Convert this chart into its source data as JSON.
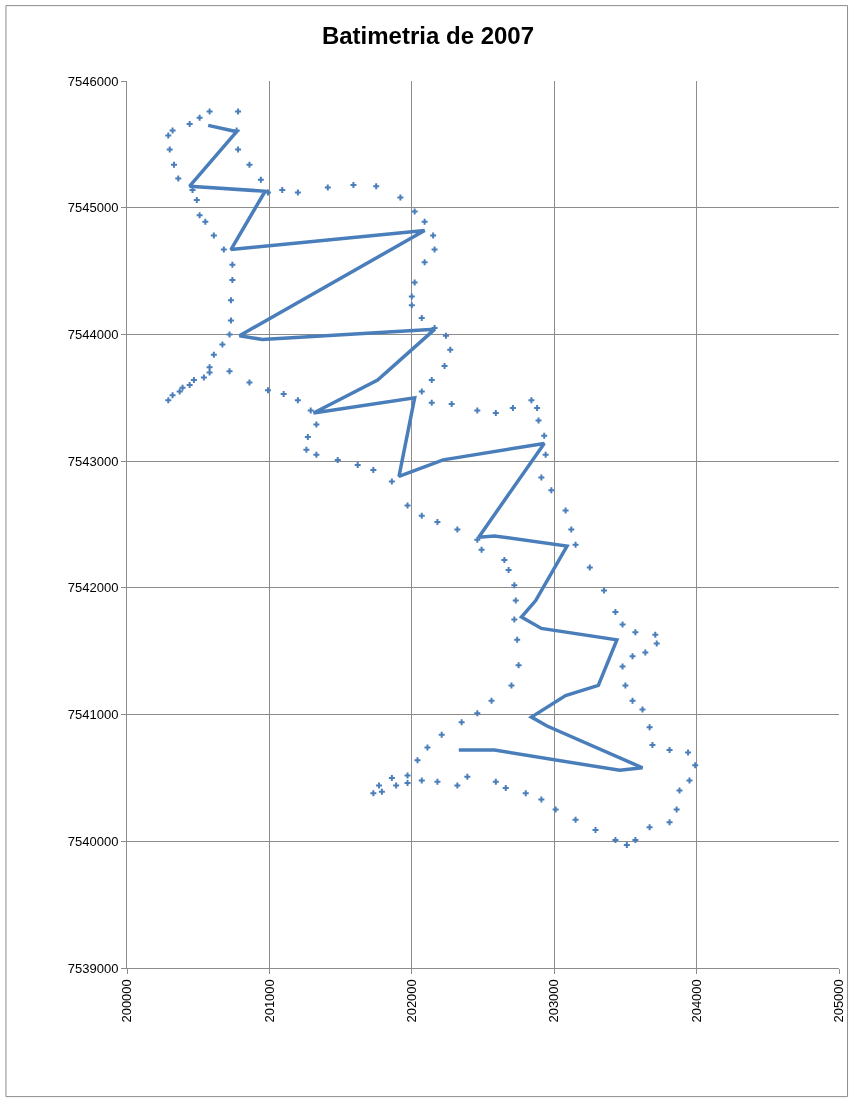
{
  "chart_data": {
    "type": "scatter",
    "title": "Batimetria de 2007",
    "xlim": [
      200000,
      205000
    ],
    "xticks": [
      200000,
      201000,
      202000,
      203000,
      204000,
      205000
    ],
    "ylim": [
      7539000,
      7546000
    ],
    "yticks": [
      7539000,
      7540000,
      7541000,
      7542000,
      7543000,
      7544000,
      7545000,
      7546000
    ],
    "grid": true,
    "marker": "cross",
    "series": [
      {
        "color": "#4a7ebb",
        "x": [
          200580,
          200780,
          200770,
          200780,
          200860,
          200940,
          200990,
          201090,
          201200,
          201410,
          201590,
          201750,
          201920,
          202020,
          202090,
          202150,
          202160,
          202090,
          202020,
          202000,
          202000,
          202070,
          202160,
          202240,
          202270,
          202230,
          202140,
          202070,
          202140,
          202280,
          202460,
          202590,
          202710,
          202840,
          202880,
          202890,
          202930,
          202940,
          202910,
          202980,
          203080,
          203120,
          203150,
          203250,
          203350,
          203430,
          203480,
          203570,
          203710,
          203720,
          203640,
          203550,
          203480,
          203500,
          203550,
          203620,
          203670,
          203690,
          203810,
          203940,
          203990,
          203950,
          203880,
          203860,
          203810,
          203670,
          203570,
          203510,
          203430,
          203290,
          203150,
          203010,
          202910,
          202800,
          202660,
          202590,
          202390,
          202320,
          202180,
          202070,
          201970,
          201890,
          201790,
          201730,
          201770,
          201860,
          201970,
          202040,
          202110,
          202210,
          202350,
          202460,
          202560,
          202700,
          202750,
          202740,
          202720,
          202730,
          202720,
          202680,
          202650,
          202490,
          202460,
          202320,
          202180,
          202070,
          201970,
          201860,
          201730,
          201620,
          201480,
          201330,
          201260,
          201270,
          201330,
          201290,
          201200,
          201100,
          200990,
          200860,
          200720,
          200580,
          200470,
          200390,
          200320,
          200290,
          200370,
          200440,
          200540,
          200580,
          200610,
          200670,
          200720,
          200730,
          200730,
          200740,
          200740,
          200680,
          200610,
          200550,
          200510,
          200490,
          200460,
          200360,
          200330,
          200300,
          200290,
          200320,
          200440,
          200510
        ],
        "values": [
          7545760,
          7545760,
          7545610,
          7545460,
          7545340,
          7545220,
          7545120,
          7545140,
          7545120,
          7545160,
          7545180,
          7545170,
          7545080,
          7544970,
          7544890,
          7544780,
          7544670,
          7544570,
          7544410,
          7544300,
          7544230,
          7544130,
          7544050,
          7543990,
          7543880,
          7543750,
          7543640,
          7543550,
          7543460,
          7543450,
          7543400,
          7543380,
          7543420,
          7543480,
          7543420,
          7543320,
          7543200,
          7543050,
          7542870,
          7542770,
          7542610,
          7542460,
          7542340,
          7542160,
          7541980,
          7541810,
          7541710,
          7541650,
          7541630,
          7541560,
          7541490,
          7541460,
          7541380,
          7541230,
          7541110,
          7541040,
          7540900,
          7540760,
          7540720,
          7540700,
          7540600,
          7540480,
          7540400,
          7540250,
          7540150,
          7540110,
          7540010,
          7539970,
          7540010,
          7540090,
          7540170,
          7540250,
          7540330,
          7540380,
          7540420,
          7540470,
          7540510,
          7540440,
          7540470,
          7540480,
          7540460,
          7540440,
          7540390,
          7540380,
          7540440,
          7540500,
          7540520,
          7540640,
          7540740,
          7540840,
          7540940,
          7541010,
          7541110,
          7541230,
          7541390,
          7541590,
          7541750,
          7541900,
          7542020,
          7542140,
          7542220,
          7542300,
          7542380,
          7542460,
          7542520,
          7542570,
          7542650,
          7542840,
          7542930,
          7542970,
          7543010,
          7543050,
          7543090,
          7543190,
          7543290,
          7543400,
          7543480,
          7543530,
          7543560,
          7543620,
          7543710,
          7543700,
          7543640,
          7543580,
          7543520,
          7543480,
          7543550,
          7543600,
          7543660,
          7543740,
          7543840,
          7543920,
          7544000,
          7544110,
          7544270,
          7544430,
          7544550,
          7544670,
          7544780,
          7544890,
          7544940,
          7545060,
          7545140,
          7545230,
          7545340,
          7545460,
          7545570,
          7545610,
          7545660,
          7545710
        ]
      },
      {
        "type": "line",
        "color": "#4a7ebb",
        "marker": "none",
        "x": [
          200570,
          200770,
          200440,
          200970,
          200730,
          202090,
          200790,
          200950,
          202160,
          201760,
          201310,
          202020,
          201910,
          202220,
          202930,
          202470,
          202580,
          203090,
          202870,
          202770,
          202910,
          203440,
          203310,
          203080,
          202840,
          202950,
          203620,
          203460,
          202580,
          202330
        ],
        "values": [
          7545650,
          7545600,
          7545170,
          7545130,
          7544670,
          7544820,
          7543990,
          7543960,
          7544040,
          7543640,
          7543380,
          7543500,
          7542880,
          7543010,
          7543140,
          7542400,
          7542410,
          7542330,
          7541900,
          7541770,
          7541680,
          7541590,
          7541230,
          7541150,
          7540980,
          7540910,
          7540580,
          7540560,
          7540720,
          7540720
        ]
      }
    ]
  }
}
